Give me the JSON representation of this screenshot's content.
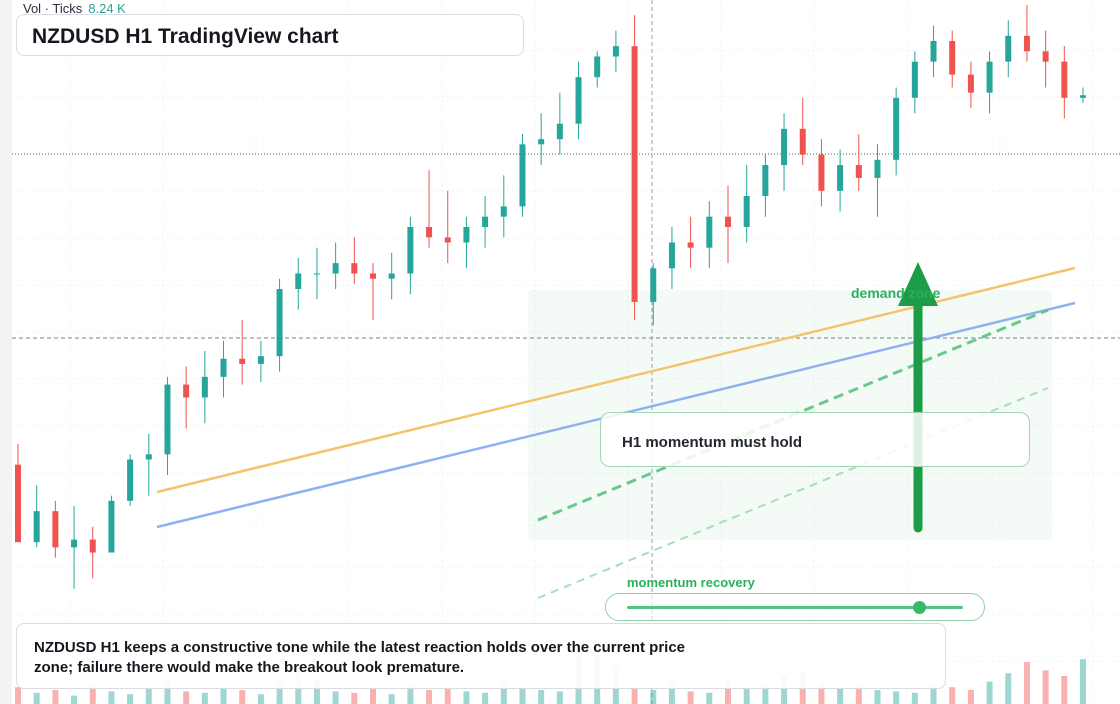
{
  "chart": {
    "title": "NZDUSD H1 TradingView chart",
    "symbol": "NZDUSD",
    "timeframe": "H1"
  },
  "volume_legend": {
    "label": "Vol · Ticks",
    "value": "8.24 K"
  },
  "annotations": {
    "demand_zone_label": "demand zone",
    "momentum_box_text": "H1 momentum must hold",
    "slider_label": "momentum recovery",
    "slider_value": 0.87,
    "caption": "NZDUSD H1 keeps a constructive tone while the latest reaction holds over the current price zone; failure there would make the breakout look premature."
  },
  "colors": {
    "bull": "#26a69a",
    "bear": "#ef5350",
    "trend_upper": "#f5c36b",
    "trend_lower": "#8fb1f0",
    "zone_green": "#2bb05a",
    "arrow": "#1c9c47"
  },
  "chart_data": {
    "type": "candlestick",
    "series": [
      {
        "name": "price",
        "values": [
          [
            544,
            552,
            518,
            514
          ],
          [
            514,
            536,
            512,
            526
          ],
          [
            526,
            530,
            508,
            512
          ],
          [
            512,
            528,
            496,
            515
          ],
          [
            515,
            520,
            500,
            510
          ],
          [
            510,
            532,
            510,
            530
          ],
          [
            530,
            548,
            528,
            546
          ],
          [
            546,
            556,
            532,
            548
          ],
          [
            548,
            578,
            540,
            575
          ],
          [
            575,
            582,
            558,
            570
          ],
          [
            570,
            588,
            560,
            578
          ],
          [
            578,
            592,
            570,
            585
          ],
          [
            585,
            600,
            575,
            583
          ],
          [
            583,
            592,
            576,
            586
          ],
          [
            586,
            616,
            580,
            612
          ],
          [
            612,
            624,
            604,
            618
          ],
          [
            618,
            628,
            608,
            618
          ],
          [
            618,
            630,
            612,
            622
          ],
          [
            622,
            632,
            614,
            618
          ],
          [
            618,
            622,
            600,
            616
          ],
          [
            616,
            626,
            608,
            618
          ],
          [
            618,
            640,
            610,
            636
          ],
          [
            636,
            658,
            628,
            632
          ],
          [
            632,
            650,
            622,
            630
          ],
          [
            630,
            640,
            620,
            636
          ],
          [
            636,
            648,
            628,
            640
          ],
          [
            640,
            656,
            632,
            644
          ],
          [
            644,
            672,
            640,
            668
          ],
          [
            668,
            680,
            660,
            670
          ],
          [
            670,
            688,
            664,
            676
          ],
          [
            676,
            700,
            670,
            694
          ],
          [
            694,
            704,
            690,
            702
          ],
          [
            702,
            712,
            696,
            706
          ],
          [
            706,
            718,
            600,
            607
          ],
          [
            607,
            622,
            598,
            620
          ],
          [
            620,
            636,
            612,
            630
          ],
          [
            630,
            640,
            620,
            628
          ],
          [
            628,
            646,
            620,
            640
          ],
          [
            640,
            652,
            622,
            636
          ],
          [
            636,
            660,
            630,
            648
          ],
          [
            648,
            664,
            640,
            660
          ],
          [
            660,
            680,
            650,
            674
          ],
          [
            674,
            686,
            660,
            664
          ],
          [
            664,
            670,
            644,
            650
          ],
          [
            650,
            666,
            642,
            660
          ],
          [
            660,
            672,
            650,
            655
          ],
          [
            655,
            668,
            640,
            662
          ],
          [
            662,
            690,
            656,
            686
          ],
          [
            686,
            704,
            680,
            700
          ],
          [
            700,
            714,
            694,
            708
          ],
          [
            708,
            712,
            690,
            695
          ],
          [
            695,
            700,
            682,
            688
          ],
          [
            688,
            704,
            680,
            700
          ],
          [
            700,
            716,
            694,
            710
          ],
          [
            710,
            722,
            700,
            704
          ],
          [
            704,
            712,
            690,
            700
          ],
          [
            700,
            706,
            678,
            686
          ],
          [
            686,
            690,
            684,
            687
          ]
        ]
      },
      {
        "name": "volume",
        "values": [
          12,
          8,
          10,
          6,
          14,
          9,
          7,
          11,
          16,
          9,
          8,
          12,
          10,
          7,
          15,
          22,
          18,
          9,
          8,
          11,
          7,
          14,
          10,
          12,
          9,
          8,
          16,
          12,
          10,
          9,
          38,
          44,
          28,
          12,
          10,
          14,
          9,
          8,
          18,
          12,
          14,
          20,
          24,
          16,
          11,
          13,
          10,
          9,
          8,
          14,
          12,
          10,
          16,
          22,
          30,
          24,
          20,
          32
        ]
      }
    ],
    "legend": "top-left"
  }
}
